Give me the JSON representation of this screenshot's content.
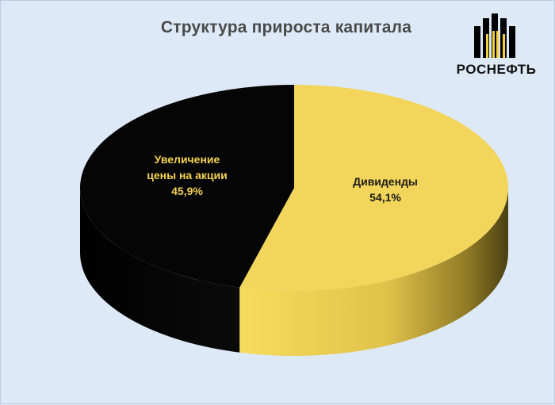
{
  "chart_data": {
    "type": "pie",
    "title": "Структура прироста капитала",
    "slices": [
      {
        "label": "Дивиденды",
        "value": 54.1,
        "value_text": "54,1%",
        "color": "#f2d55a"
      },
      {
        "label_lines": [
          "Увеличение",
          "цены на акции"
        ],
        "value": 45.9,
        "value_text": "45,9%",
        "color": "#050505"
      }
    ],
    "style": "3d"
  },
  "logo": {
    "name": "rosneft-logo",
    "wordmark": "РОСНЕФТЬ",
    "color": "#f2cf3b"
  }
}
